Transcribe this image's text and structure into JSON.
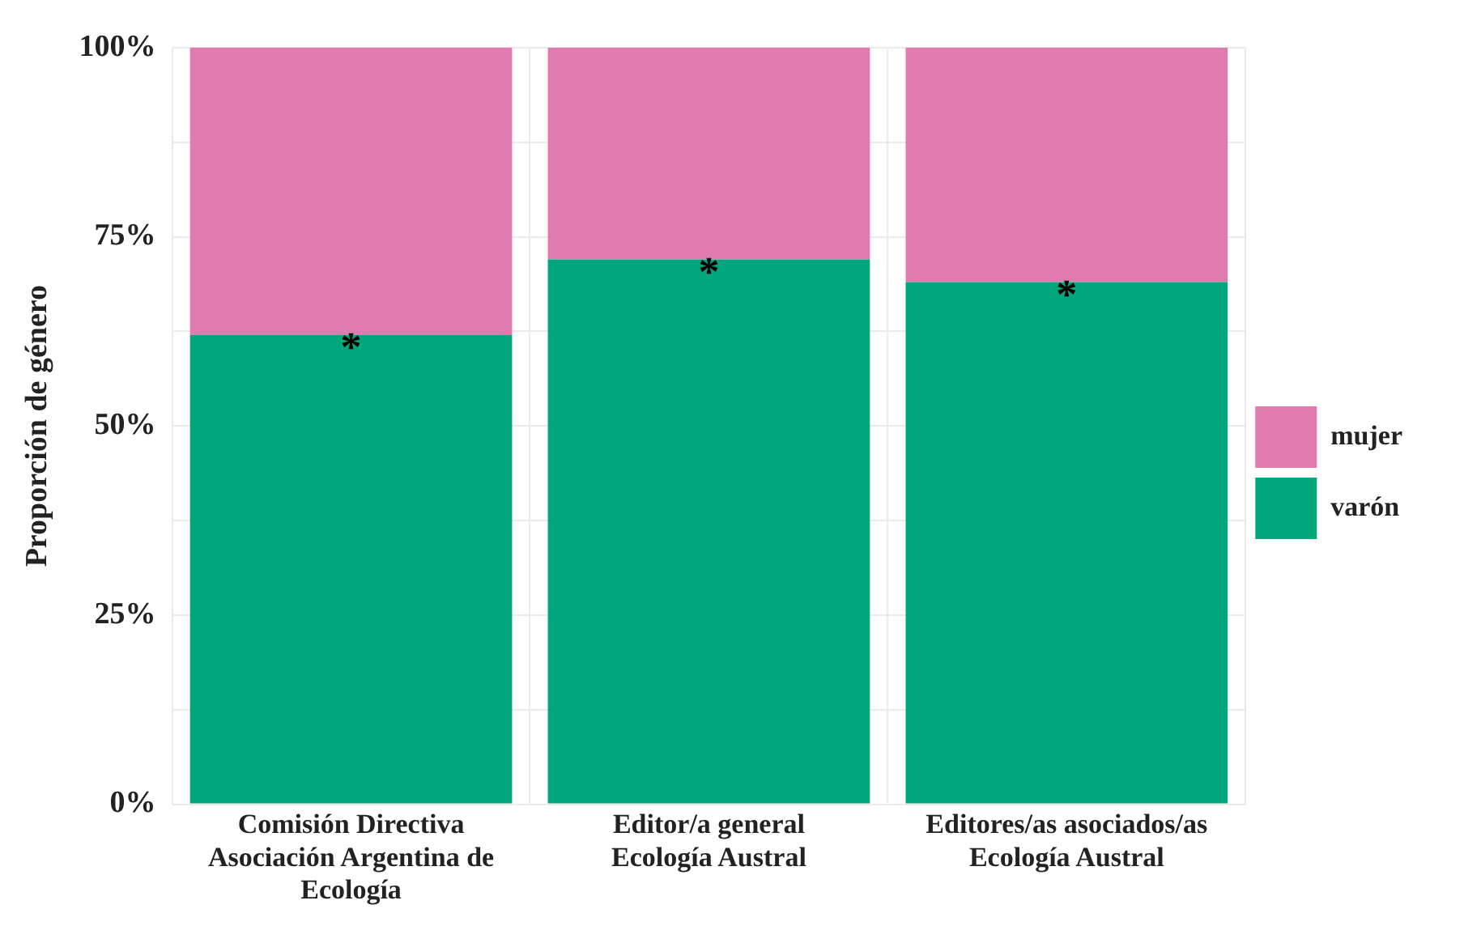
{
  "chart_data": {
    "type": "bar",
    "stacked": true,
    "ylabel": "Proporción de género",
    "categories": [
      "Comisión Directiva Asociación Argentina de Ecología",
      "Editor/a general Ecología Austral",
      "Editores/as asociados/as Ecología Austral"
    ],
    "series": [
      {
        "name": "varón",
        "color": "#00a67c",
        "values": [
          62,
          72,
          69
        ]
      },
      {
        "name": "mujer",
        "color": "#df7baf",
        "values": [
          38,
          28,
          31
        ]
      }
    ],
    "ylim": [
      0,
      100
    ],
    "yticks": [
      {
        "value": 0,
        "label": "0%"
      },
      {
        "value": 12.5,
        "label": null
      },
      {
        "value": 25,
        "label": "25%"
      },
      {
        "value": 37.5,
        "label": null
      },
      {
        "value": 50,
        "label": "50%"
      },
      {
        "value": 62.5,
        "label": null
      },
      {
        "value": 75,
        "label": "75%"
      },
      {
        "value": 87.5,
        "label": null
      },
      {
        "value": 100,
        "label": "100%"
      }
    ],
    "grid": true,
    "legend": "right",
    "annotations": [
      {
        "text": "*",
        "x": "Comisión Directiva Asociación Argentina de Ecología",
        "y": 62
      },
      {
        "text": "*",
        "x": "Editor/a general Ecología Austral",
        "y": 72
      },
      {
        "text": "*",
        "x": "Editores/as asociados/as Ecología Austral",
        "y": 69
      }
    ]
  }
}
